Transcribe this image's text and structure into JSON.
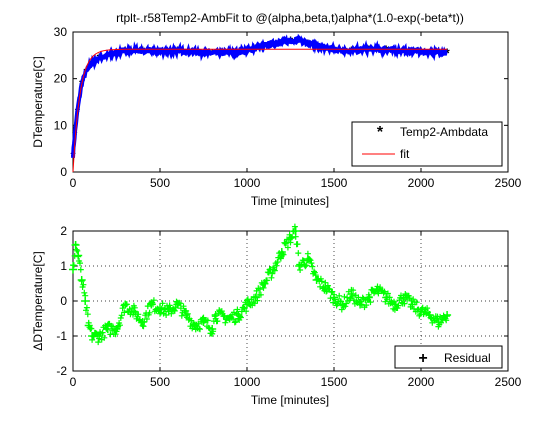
{
  "window": {
    "width": 560,
    "height": 420
  },
  "colors": {
    "data": "#0000ff",
    "fit": "#ff0000",
    "residual": "#00ff00",
    "axes": "#000000",
    "grid": "#000000"
  },
  "chart_data": [
    {
      "type": "line",
      "title": "rtplt-.r58Temp2-AmbFit to @(alpha,beta,t)alpha*(1.0-exp(-beta*t))",
      "xlabel": "Time [minutes]",
      "ylabel": "DTemperature[C]",
      "xlim": [
        0,
        2500
      ],
      "ylim": [
        0,
        30
      ],
      "xticks": [
        0,
        500,
        1000,
        1500,
        2000,
        2500
      ],
      "yticks": [
        0,
        10,
        20,
        30
      ],
      "grid": false,
      "legend_position": "bottom-right",
      "legend": [
        "Temp2-Ambdata",
        "fit"
      ],
      "series": [
        {
          "name": "Temp2-Ambdata",
          "marker": "asterisk",
          "x": [
            0,
            10,
            25,
            50,
            75,
            100,
            150,
            200,
            300,
            400,
            500,
            600,
            700,
            800,
            900,
            1000,
            1050,
            1100,
            1150,
            1200,
            1250,
            1300,
            1350,
            1400,
            1500,
            1600,
            1700,
            1800,
            1900,
            2000,
            2100,
            2150
          ],
          "y": [
            3.5,
            8,
            13,
            19,
            21.5,
            23,
            24.5,
            25,
            26,
            26,
            25.8,
            26,
            25.8,
            25.5,
            25.6,
            26,
            26.5,
            27,
            27.5,
            27.8,
            28.2,
            28.3,
            27.5,
            27,
            26.3,
            26,
            26.3,
            26.2,
            26,
            25.8,
            25.6,
            25.6
          ]
        },
        {
          "name": "fit",
          "line": "solid",
          "alpha": 26.3,
          "beta": 0.025,
          "x_range": [
            0,
            2150
          ]
        }
      ]
    },
    {
      "type": "scatter",
      "title": "",
      "xlabel": "Time [minutes]",
      "ylabel": "ΔDTemperature[C]",
      "xlim": [
        0,
        2500
      ],
      "ylim": [
        -2,
        2
      ],
      "xticks": [
        0,
        500,
        1000,
        1500,
        2000,
        2500
      ],
      "yticks": [
        -2,
        -1,
        0,
        1,
        2
      ],
      "grid": true,
      "legend_position": "bottom-right",
      "legend": [
        "Residual"
      ],
      "series": [
        {
          "name": "Residual",
          "marker": "plus",
          "x": [
            0,
            15,
            30,
            50,
            70,
            90,
            110,
            150,
            200,
            250,
            300,
            350,
            400,
            450,
            500,
            550,
            600,
            650,
            700,
            750,
            800,
            820,
            900,
            950,
            1000,
            1050,
            1100,
            1150,
            1200,
            1250,
            1280,
            1300,
            1350,
            1400,
            1450,
            1500,
            1550,
            1600,
            1650,
            1700,
            1750,
            1800,
            1850,
            1900,
            1950,
            2000,
            2050,
            2100,
            2150
          ],
          "y": [
            0.9,
            1.6,
            1.3,
            0.6,
            0,
            -0.7,
            -1.0,
            -1.0,
            -0.8,
            -0.8,
            -0.1,
            -0.3,
            -0.6,
            -0.1,
            -0.2,
            -0.3,
            -0.1,
            -0.4,
            -0.7,
            -0.6,
            -0.8,
            -0.4,
            -0.5,
            -0.4,
            -0.1,
            0.1,
            0.5,
            0.9,
            1.4,
            1.8,
            2.0,
            1.0,
            1.2,
            0.6,
            0.4,
            0.1,
            -0.1,
            0.2,
            -0.1,
            0.1,
            0.3,
            0.1,
            -0.1,
            0.1,
            -0.1,
            -0.3,
            -0.4,
            -0.6,
            -0.4
          ]
        }
      ]
    }
  ]
}
